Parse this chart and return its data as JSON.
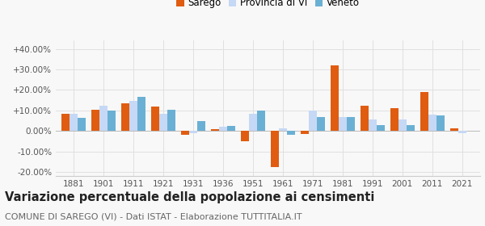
{
  "years": [
    1881,
    1901,
    1911,
    1921,
    1931,
    1936,
    1951,
    1961,
    1971,
    1981,
    1991,
    2001,
    2011,
    2021
  ],
  "sarego": [
    8.5,
    10.2,
    13.5,
    11.8,
    -2.0,
    0.8,
    -5.0,
    -17.5,
    -1.5,
    32.0,
    12.5,
    11.0,
    19.0,
    1.5
  ],
  "provincia": [
    8.5,
    12.5,
    14.5,
    8.5,
    -1.0,
    2.0,
    8.5,
    1.5,
    10.0,
    7.0,
    5.5,
    5.5,
    8.0,
    -1.0
  ],
  "veneto": [
    6.5,
    10.0,
    16.5,
    10.5,
    5.0,
    2.5,
    10.0,
    -2.0,
    7.0,
    7.0,
    3.0,
    3.0,
    7.5,
    0.0
  ],
  "color_sarego": "#e05c10",
  "color_provincia": "#c5d8f5",
  "color_veneto": "#6ab0d4",
  "title": "Variazione percentuale della popolazione ai censimenti",
  "subtitle": "COMUNE DI SAREGO (VI) - Dati ISTAT - Elaborazione TUTTITALIA.IT",
  "ylim": [
    -22,
    44
  ],
  "yticks": [
    -20,
    -10,
    0,
    10,
    20,
    30,
    40
  ],
  "bar_width": 0.27,
  "legend_sarego": "Sarego",
  "legend_provincia": "Provincia di VI",
  "legend_veneto": "Veneto",
  "bg_color": "#f8f8f8",
  "grid_color": "#e0e0e0",
  "title_fontsize": 10.5,
  "subtitle_fontsize": 8.0,
  "tick_fontsize": 7.5
}
